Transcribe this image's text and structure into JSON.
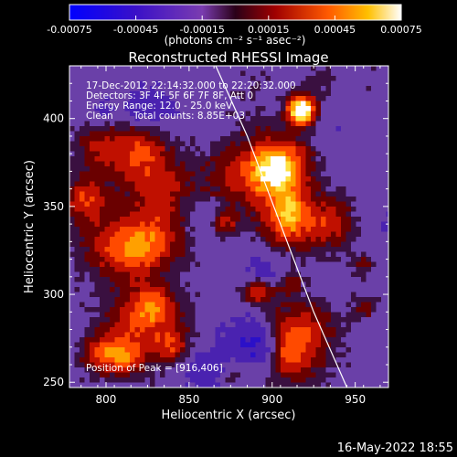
{
  "chart_data": {
    "type": "heatmap",
    "title": "Reconstructed RHESSI Image",
    "xlabel": "Heliocentric X (arcsec)",
    "ylabel": "Heliocentric Y (arcsec)",
    "xlim": [
      778,
      970
    ],
    "ylim": [
      247,
      430
    ],
    "x_ticks": [
      800,
      850,
      900,
      950
    ],
    "y_ticks": [
      250,
      300,
      350,
      400
    ],
    "colorbar": {
      "range": [
        -0.00075,
        0.00075
      ],
      "tick_labels": [
        "-0.00075",
        "-0.00045",
        "-0.00015",
        "0.00015",
        "0.00045",
        "0.00075"
      ],
      "unit_label": "(photons cm⁻² s⁻¹ asec⁻²)"
    },
    "annotations": {
      "time_range": "17-Dec-2012 22:14:32.000 to 22:20:32.000",
      "detectors": "Detectors: 3F 4F 5F 6F 7F 8F, Att 0",
      "energy": "Energy Range: 12.0 - 25.0 keV",
      "clean": "Clean",
      "total_counts": "Total counts: 8.85E+03",
      "peak": "Position of Peak = [916,406]"
    },
    "peak_position": [
      916,
      406
    ],
    "limb_curve": {
      "x": [
        866,
        885,
        905,
        925,
        945
      ],
      "y": [
        430,
        390,
        340,
        290,
        247
      ]
    }
  },
  "footer": {
    "timestamp": "16-May-2022 18:55"
  }
}
